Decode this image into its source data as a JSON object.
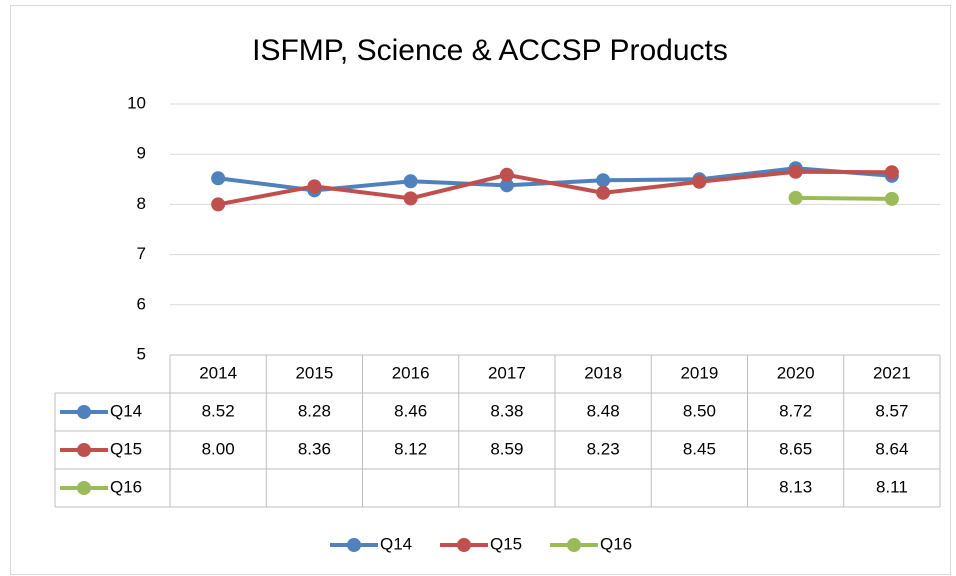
{
  "chart_data": {
    "type": "line",
    "title": "ISFMP, Science & ACCSP Products",
    "categories": [
      "2014",
      "2015",
      "2016",
      "2017",
      "2018",
      "2019",
      "2020",
      "2021"
    ],
    "series": [
      {
        "name": "Q14",
        "color": "#4f81bd",
        "values": [
          8.52,
          8.28,
          8.46,
          8.38,
          8.48,
          8.5,
          8.72,
          8.57
        ],
        "value_labels": [
          "8.52",
          "8.28",
          "8.46",
          "8.38",
          "8.48",
          "8.50",
          "8.72",
          "8.57"
        ]
      },
      {
        "name": "Q15",
        "color": "#c0504d",
        "values": [
          8.0,
          8.36,
          8.12,
          8.59,
          8.23,
          8.45,
          8.65,
          8.64
        ],
        "value_labels": [
          "8.00",
          "8.36",
          "8.12",
          "8.59",
          "8.23",
          "8.45",
          "8.65",
          "8.64"
        ]
      },
      {
        "name": "Q16",
        "color": "#9bbb59",
        "values": [
          null,
          null,
          null,
          null,
          null,
          null,
          8.13,
          8.11
        ],
        "value_labels": [
          null,
          null,
          null,
          null,
          null,
          null,
          "8.13",
          "8.11"
        ]
      }
    ],
    "ylim": [
      5,
      10
    ],
    "yticks": [
      5,
      6,
      7,
      8,
      9,
      10
    ],
    "grid": true,
    "data_table": true,
    "legend": "bottom"
  }
}
